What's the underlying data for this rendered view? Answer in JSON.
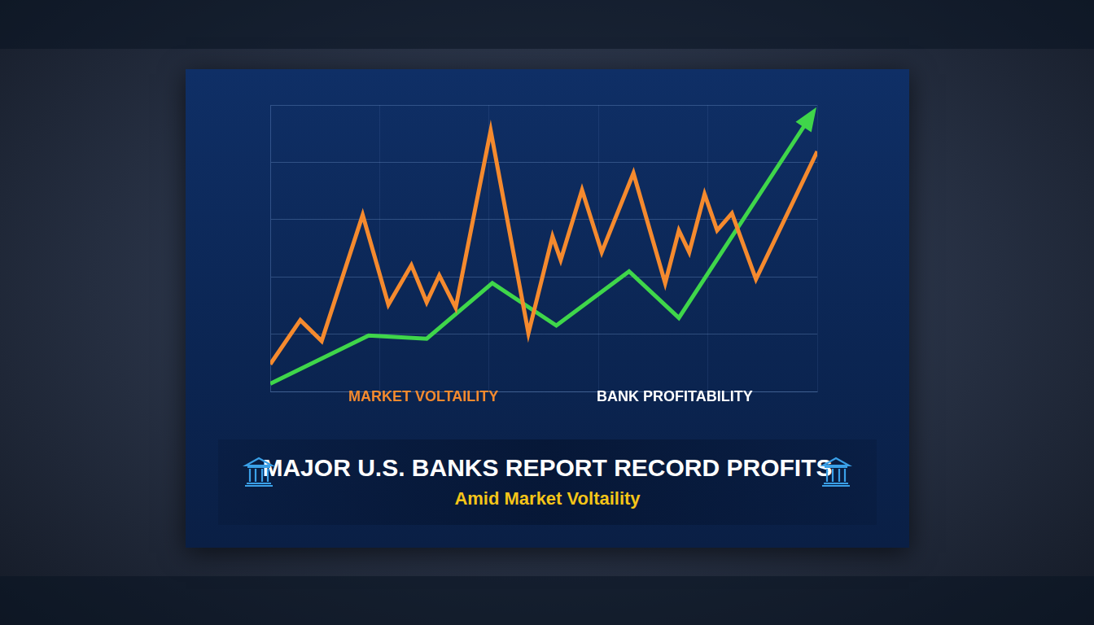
{
  "chart_data": {
    "type": "line",
    "title": "MAJOR U.S. BANKS REPORT RECORD PROFITS",
    "subtitle": "Amid Market Voltaility",
    "series": [
      {
        "name": "MARKET VOLTAILITY",
        "color": "#f58a2e",
        "x": [
          0,
          5.5,
          9.4,
          16.9,
          21.6,
          25.8,
          28.6,
          30.9,
          33.9,
          40.3,
          47.2,
          51.6,
          53.1,
          57.0,
          60.6,
          66.4,
          72.2,
          74.7,
          76.6,
          79.4,
          81.7,
          84.4,
          88.8,
          100
        ],
        "values": [
          9.5,
          24.9,
          17.6,
          61.6,
          30.3,
          44.1,
          31.1,
          40.5,
          29.2,
          91.1,
          20.3,
          54.1,
          45.9,
          70.3,
          48.6,
          76.2,
          37.8,
          56.2,
          48.6,
          68.9,
          56.2,
          62.2,
          39.2,
          83.8
        ]
      },
      {
        "name": "BANK PROFITABILITY",
        "color": "#3fd64a",
        "x": [
          0,
          18.0,
          28.6,
          40.6,
          52.3,
          65.6,
          74.7,
          99.2
        ],
        "values": [
          2.7,
          19.5,
          18.4,
          37.8,
          23.0,
          41.9,
          25.7,
          97.3
        ]
      }
    ],
    "xlim": [
      0,
      100
    ],
    "xticks": [
      0,
      20,
      40,
      60,
      80,
      100
    ],
    "ylim": [
      0,
      100
    ],
    "yticks": [
      0,
      20,
      40,
      60,
      80,
      100
    ],
    "grid": true,
    "legend": "bottom",
    "tick_labels": false
  }
}
